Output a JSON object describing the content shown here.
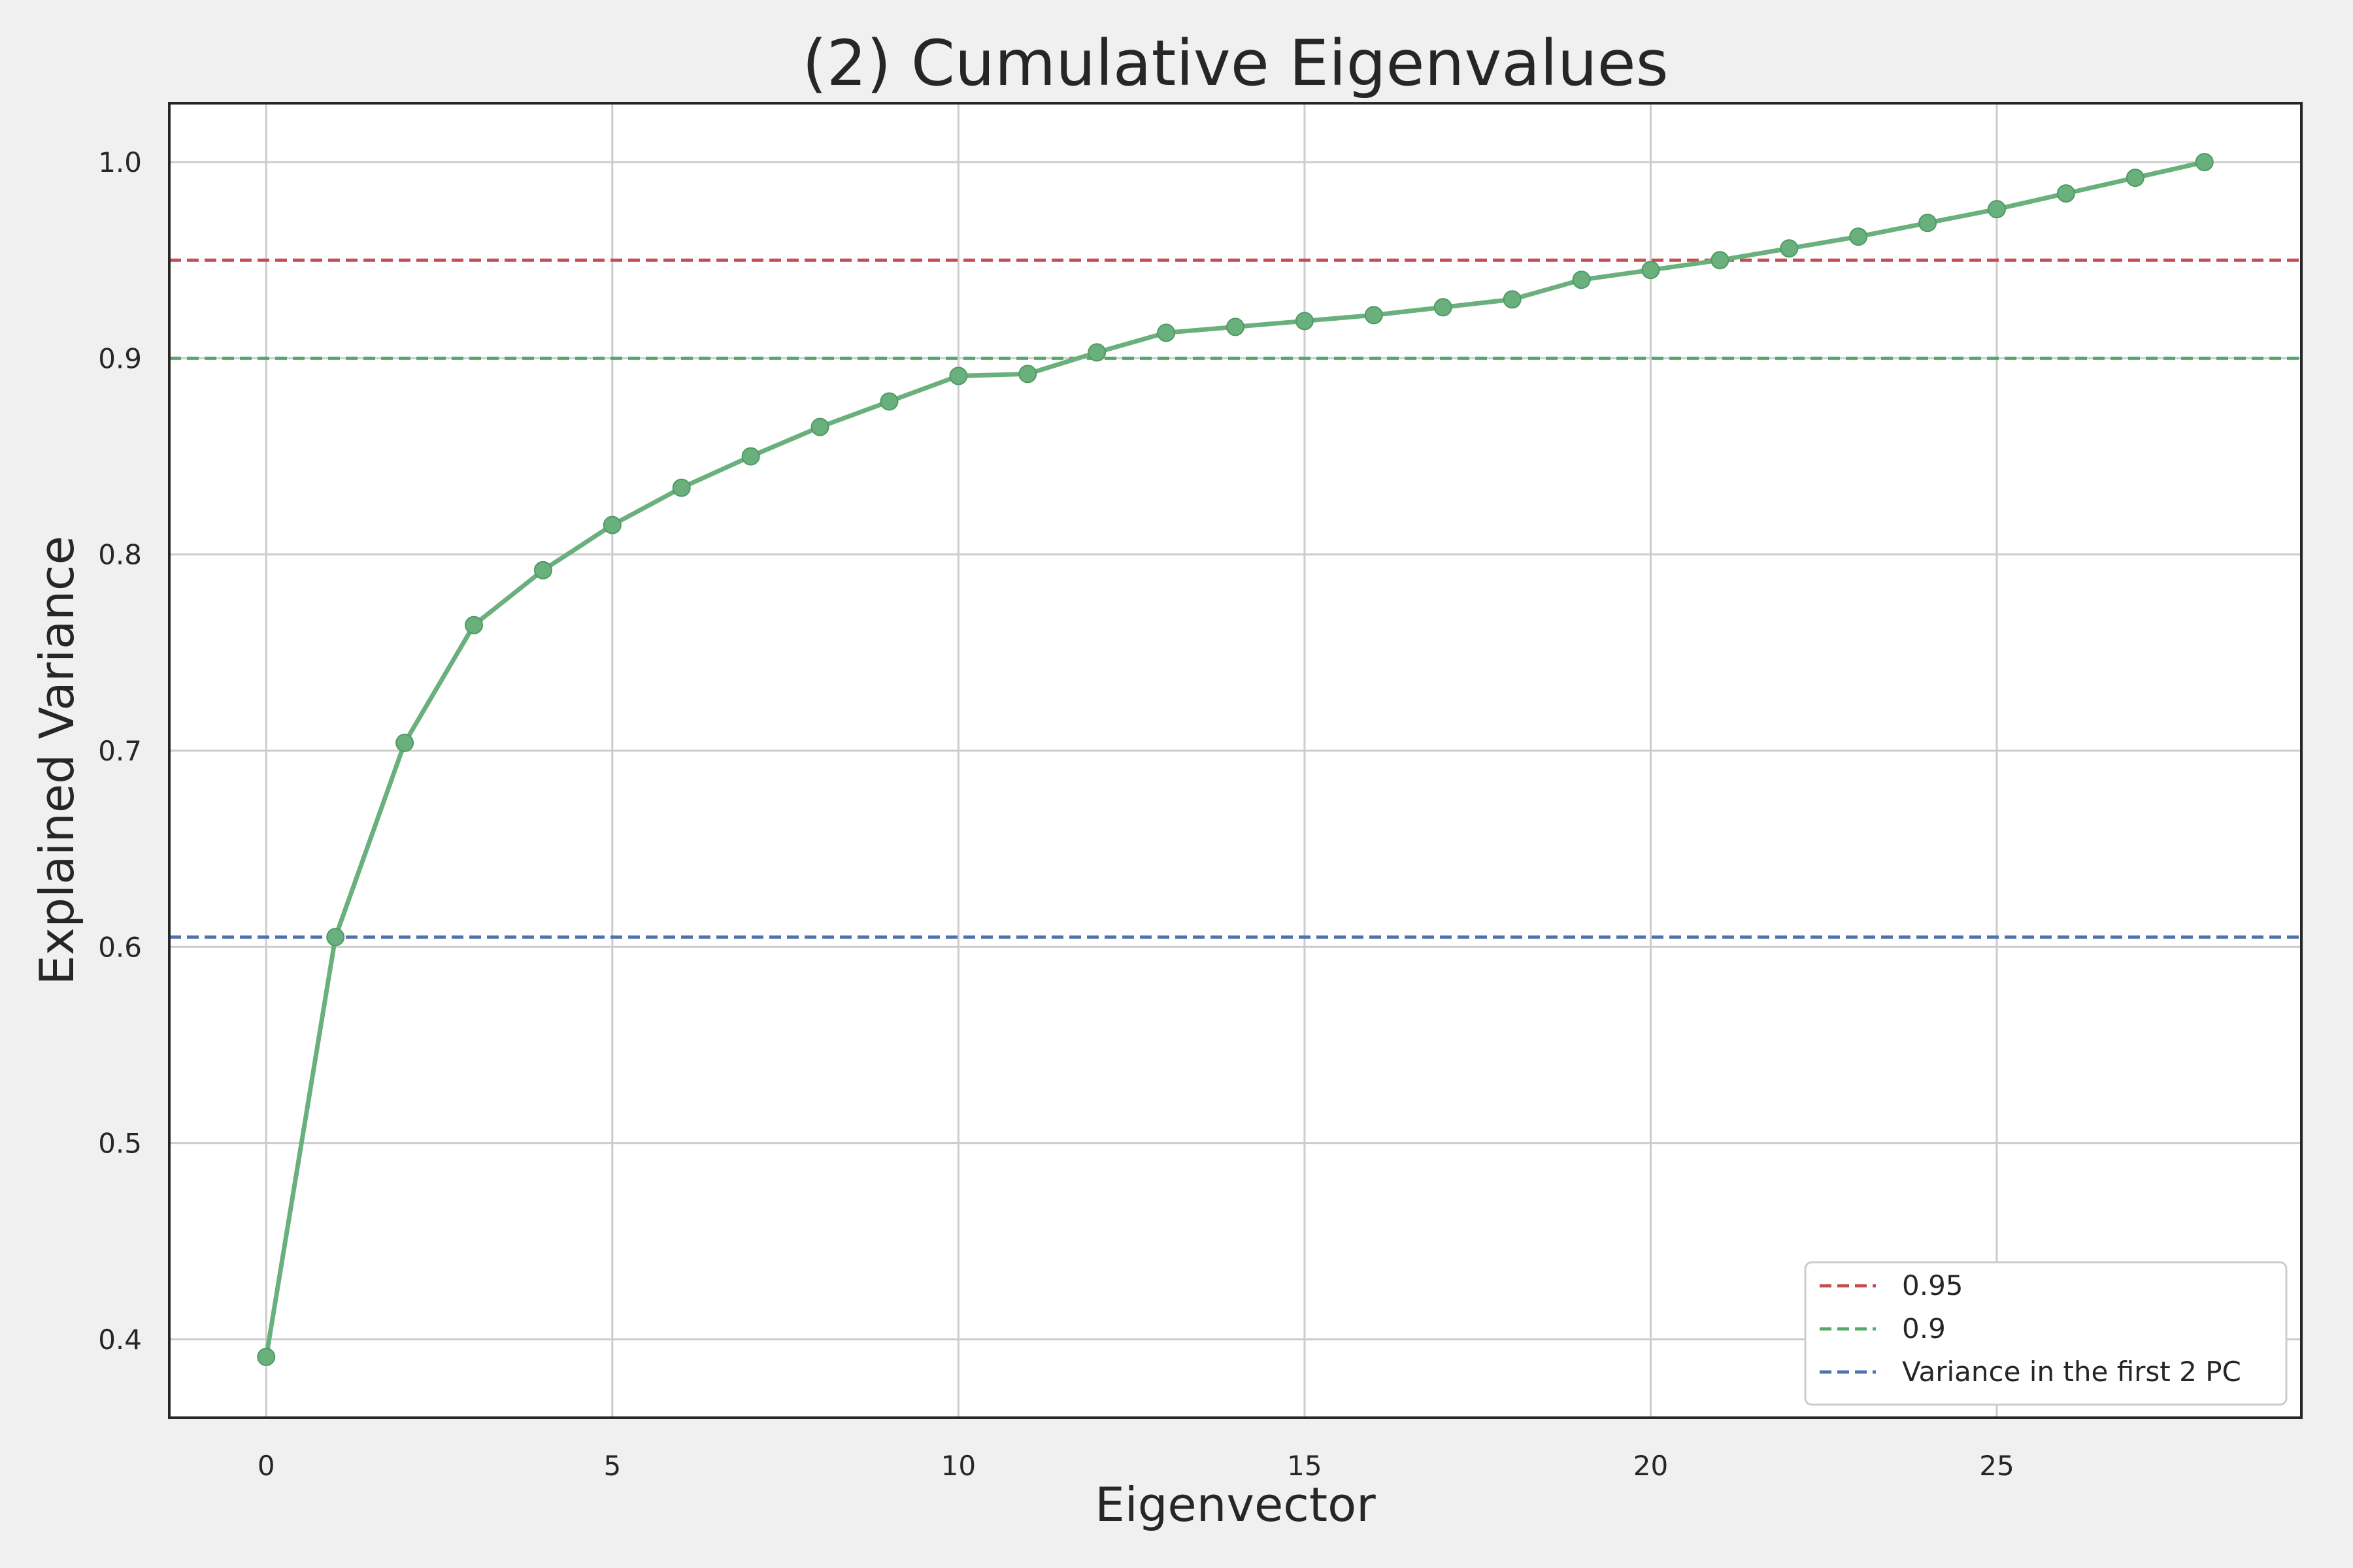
{
  "chart_data": {
    "type": "line",
    "title": "(2) Cumulative Eigenvalues",
    "xlabel": "Eigenvector",
    "ylabel": "Explained Variance",
    "xlim": [
      -1.4,
      29.4
    ],
    "ylim": [
      0.36,
      1.03
    ],
    "xticks": [
      0,
      5,
      10,
      15,
      20,
      25
    ],
    "yticks": [
      0.4,
      0.5,
      0.6,
      0.7,
      0.8,
      0.9,
      1.0
    ],
    "xtick_labels": [
      "0",
      "5",
      "10",
      "15",
      "20",
      "25"
    ],
    "ytick_labels": [
      "0.4",
      "0.5",
      "0.6",
      "0.7",
      "0.8",
      "0.9",
      "1.0"
    ],
    "grid": true,
    "legend_position": "lower-right",
    "series": [
      {
        "color": "#6ab07d",
        "marker": "circle",
        "x": [
          0,
          1,
          2,
          3,
          4,
          5,
          6,
          7,
          8,
          9,
          10,
          11,
          12,
          13,
          14,
          15,
          16,
          17,
          18,
          19,
          20,
          21,
          22,
          23,
          24,
          25,
          26,
          27,
          28
        ],
        "y": [
          0.391,
          0.605,
          0.704,
          0.764,
          0.792,
          0.815,
          0.834,
          0.85,
          0.865,
          0.878,
          0.891,
          0.892,
          0.903,
          0.913,
          0.916,
          0.919,
          0.922,
          0.926,
          0.93,
          0.94,
          0.945,
          0.95,
          0.956,
          0.962,
          0.969,
          0.976,
          0.984,
          0.992,
          1.0
        ]
      }
    ],
    "reference_lines": [
      {
        "name": "0.95",
        "y": 0.95,
        "color": "#c44e52",
        "style": "dashed"
      },
      {
        "name": "0.9",
        "y": 0.9,
        "color": "#55a868",
        "style": "dashed"
      },
      {
        "name": "Variance in the first 2 PC",
        "y": 0.605,
        "color": "#4c72b0",
        "style": "dashed"
      }
    ],
    "colors": {
      "background": "#f0f0f0",
      "plot_background": "#ffffff",
      "axes_edge": "#262626",
      "grid": "#cccccc"
    }
  }
}
